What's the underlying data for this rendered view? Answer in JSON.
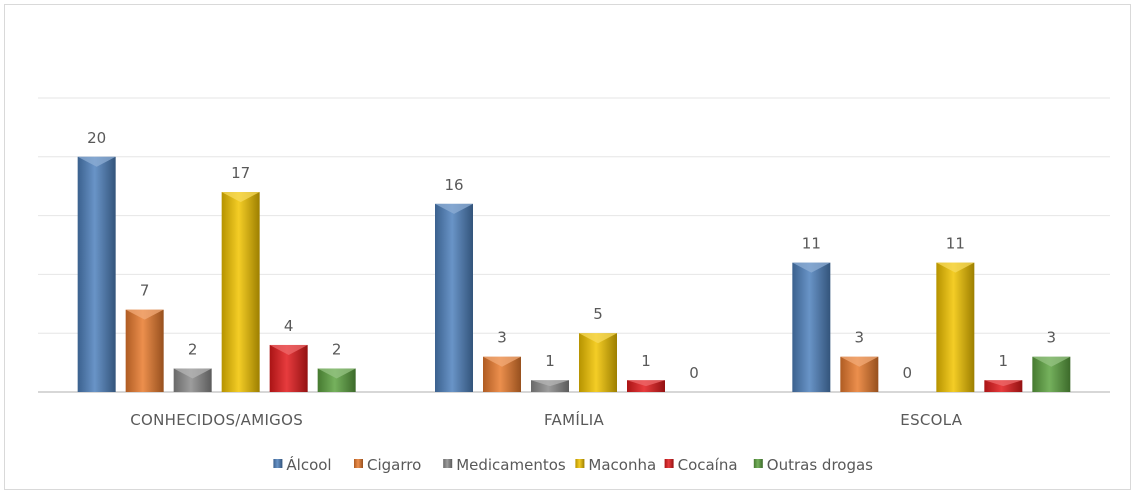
{
  "chart_data": {
    "type": "bar",
    "title": "",
    "xlabel": "",
    "ylabel": "",
    "ylim": [
      0,
      25
    ],
    "grid": true,
    "legend_position": "bottom",
    "categories": [
      "CONHECIDOS/AMIGOS",
      "FAMÍLIA",
      "ESCOLA"
    ],
    "series": [
      {
        "name": "Álcool",
        "color": "#4f81bd",
        "values": [
          20,
          16,
          11
        ]
      },
      {
        "name": "Cigarro",
        "color": "#e97b2e",
        "values": [
          7,
          3,
          3
        ]
      },
      {
        "name": "Medicamentos",
        "color": "#8c8c8c",
        "values": [
          2,
          1,
          0
        ]
      },
      {
        "name": "Maconha",
        "color": "#f2c400",
        "values": [
          17,
          5,
          11
        ]
      },
      {
        "name": "Cocaína",
        "color": "#e31a1c",
        "values": [
          4,
          1,
          1
        ]
      },
      {
        "name": "Outras drogas",
        "color": "#5da340",
        "values": [
          2,
          0,
          3
        ]
      }
    ]
  }
}
